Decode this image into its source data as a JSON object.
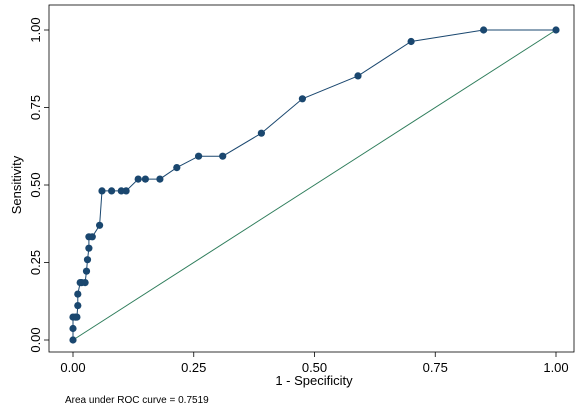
{
  "chart_data": {
    "type": "line",
    "xlabel": "1 - Specificity",
    "ylabel": "Sensitivity",
    "xlim": [
      0,
      1
    ],
    "ylim": [
      0,
      1
    ],
    "xticks": [
      "0.00",
      "0.25",
      "0.50",
      "0.75",
      "1.00"
    ],
    "yticks": [
      "0.00",
      "0.25",
      "0.50",
      "0.75",
      "1.00"
    ],
    "grid": "horizontal",
    "note": "Area under ROC curve = 0.7519",
    "colors": {
      "roc": "#1a476f",
      "reference": "#2e7d5b",
      "grid": "#eaf2f3"
    },
    "series": [
      {
        "style": "line-markers",
        "x": [
          0.0,
          0.0,
          0.0,
          0.005,
          0.008,
          0.01,
          0.01,
          0.015,
          0.018,
          0.025,
          0.028,
          0.03,
          0.033,
          0.033,
          0.04,
          0.055,
          0.06,
          0.08,
          0.1,
          0.11,
          0.135,
          0.15,
          0.18,
          0.215,
          0.26,
          0.31,
          0.39,
          0.475,
          0.59,
          0.7,
          0.85,
          1.0
        ],
        "y": [
          0.0,
          0.037,
          0.074,
          0.074,
          0.074,
          0.111,
          0.148,
          0.185,
          0.185,
          0.185,
          0.222,
          0.259,
          0.296,
          0.333,
          0.333,
          0.37,
          0.481,
          0.481,
          0.481,
          0.481,
          0.519,
          0.519,
          0.519,
          0.556,
          0.593,
          0.593,
          0.667,
          0.778,
          0.852,
          0.963,
          1.0,
          1.0
        ]
      },
      {
        "style": "line",
        "x": [
          0,
          1
        ],
        "y": [
          0,
          1
        ]
      }
    ]
  }
}
